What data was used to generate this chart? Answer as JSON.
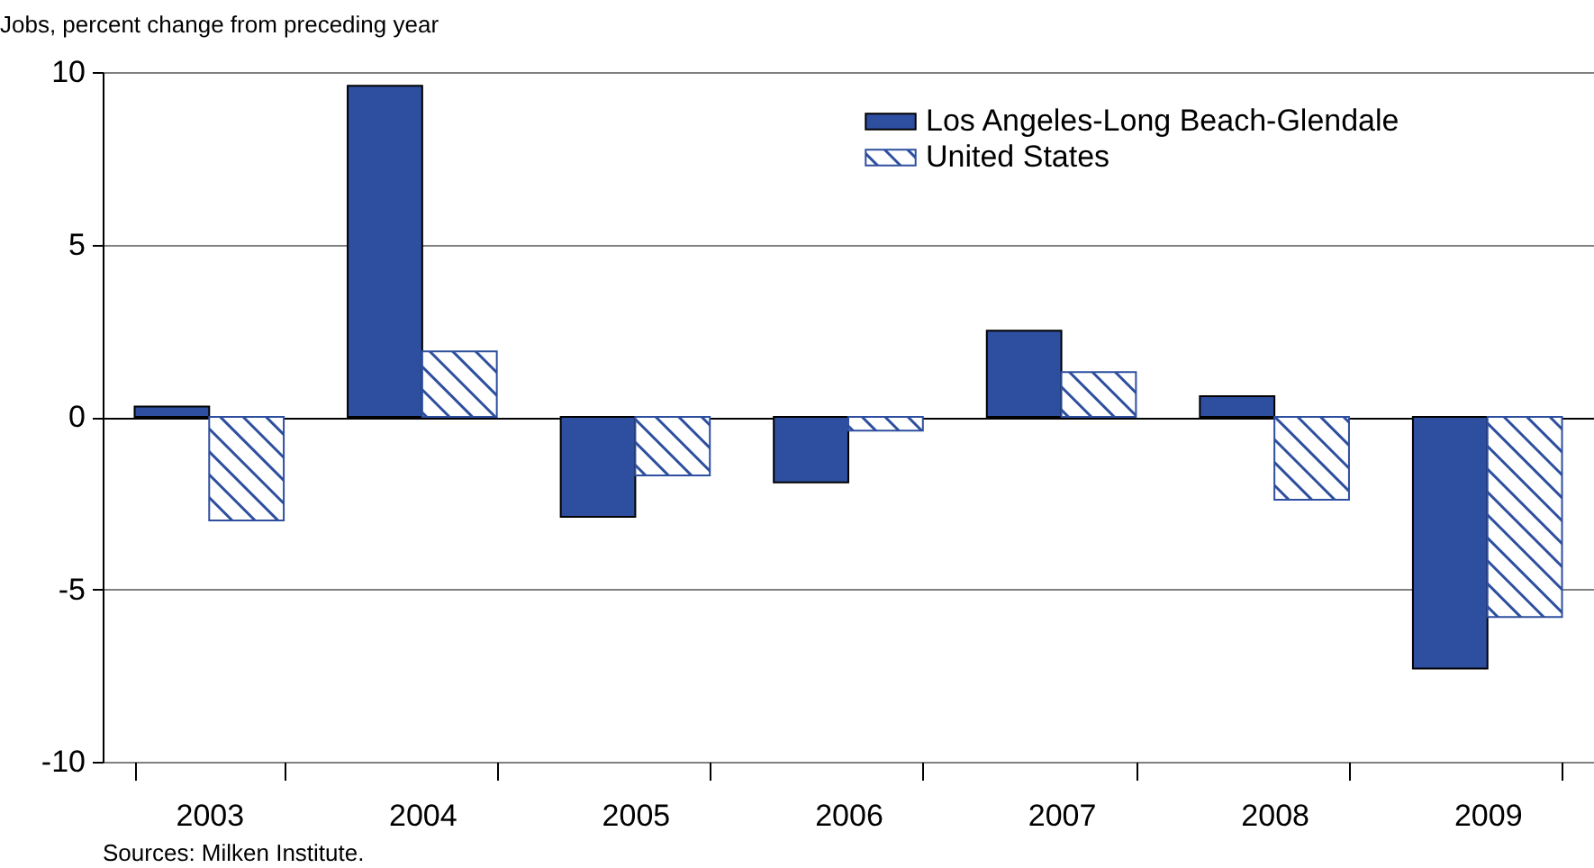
{
  "chart_data": {
    "type": "bar",
    "subtitle": "Jobs, percent change from preceding year",
    "categories": [
      "2003",
      "2004",
      "2005",
      "2006",
      "2007",
      "2008",
      "2009"
    ],
    "series": [
      {
        "name": "Los Angeles-Long Beach-Glendale",
        "color": "#2e4f9f",
        "values": [
          0.3,
          9.6,
          -2.9,
          -1.9,
          2.5,
          0.6,
          -7.3
        ]
      },
      {
        "name": "United States",
        "color": "#2e4f9f",
        "values": [
          -3.0,
          1.9,
          -1.7,
          -0.4,
          1.3,
          -2.4,
          -5.8
        ]
      }
    ],
    "ylim": [
      -10,
      10
    ],
    "yticks": [
      -10,
      -5,
      0,
      5,
      10
    ],
    "grid": "y",
    "legend": "top right",
    "annotations": [
      "Sources: Milken Institute."
    ]
  }
}
